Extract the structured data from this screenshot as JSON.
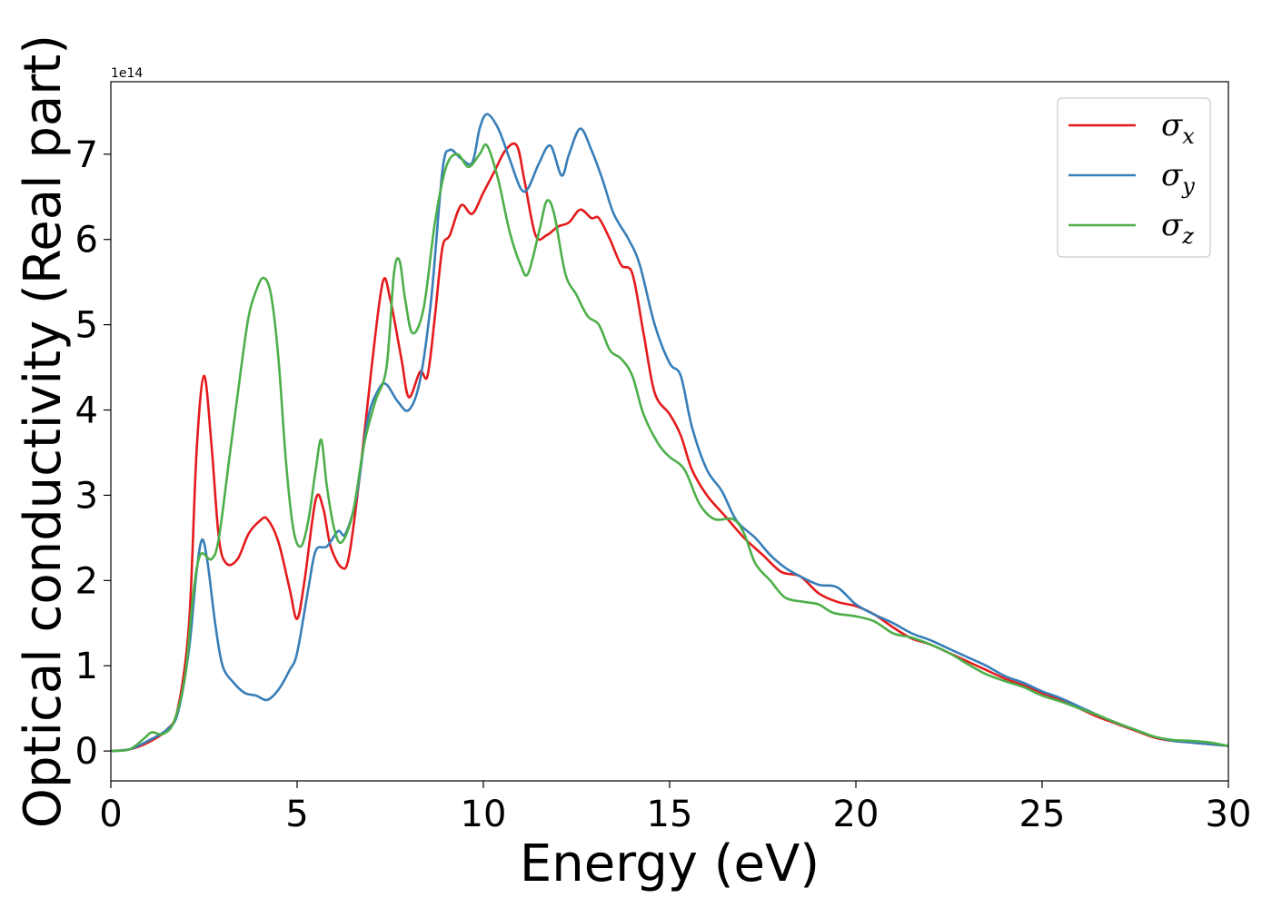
{
  "chart_data": {
    "type": "line",
    "xlabel": "Energy (eV)",
    "ylabel": "Optical conductivity (Real part)",
    "offset_text": "1e14",
    "xlim": [
      0,
      30
    ],
    "ylim": [
      -0.35,
      7.85
    ],
    "xticks": [
      "0",
      "5",
      "10",
      "15",
      "20",
      "25",
      "30"
    ],
    "yticks": [
      "0",
      "1",
      "2",
      "3",
      "4",
      "5",
      "6",
      "7"
    ],
    "grid": false,
    "legend_position": "top-right",
    "series": [
      {
        "name": "σ",
        "subscript": "x",
        "color": "#e41a1c",
        "points": [
          [
            0,
            0
          ],
          [
            0.5,
            0.02
          ],
          [
            1,
            0.1
          ],
          [
            1.5,
            0.25
          ],
          [
            1.8,
            0.5
          ],
          [
            2.1,
            1.5
          ],
          [
            2.3,
            3.5
          ],
          [
            2.5,
            4.4
          ],
          [
            2.7,
            3.6
          ],
          [
            2.9,
            2.5
          ],
          [
            3.1,
            2.2
          ],
          [
            3.4,
            2.25
          ],
          [
            3.7,
            2.55
          ],
          [
            4.0,
            2.7
          ],
          [
            4.2,
            2.72
          ],
          [
            4.5,
            2.45
          ],
          [
            4.8,
            1.9
          ],
          [
            5.0,
            1.55
          ],
          [
            5.2,
            2.0
          ],
          [
            5.5,
            2.95
          ],
          [
            5.7,
            2.85
          ],
          [
            5.9,
            2.4
          ],
          [
            6.2,
            2.15
          ],
          [
            6.4,
            2.3
          ],
          [
            6.7,
            3.3
          ],
          [
            7.0,
            4.5
          ],
          [
            7.3,
            5.5
          ],
          [
            7.5,
            5.3
          ],
          [
            7.8,
            4.6
          ],
          [
            8.0,
            4.15
          ],
          [
            8.3,
            4.45
          ],
          [
            8.5,
            4.4
          ],
          [
            8.7,
            5.1
          ],
          [
            8.9,
            5.9
          ],
          [
            9.1,
            6.05
          ],
          [
            9.4,
            6.4
          ],
          [
            9.7,
            6.3
          ],
          [
            10.0,
            6.55
          ],
          [
            10.3,
            6.8
          ],
          [
            10.6,
            7.05
          ],
          [
            10.9,
            7.1
          ],
          [
            11.1,
            6.7
          ],
          [
            11.4,
            6.05
          ],
          [
            11.7,
            6.05
          ],
          [
            12.0,
            6.15
          ],
          [
            12.3,
            6.2
          ],
          [
            12.6,
            6.35
          ],
          [
            12.9,
            6.25
          ],
          [
            13.1,
            6.25
          ],
          [
            13.4,
            6.0
          ],
          [
            13.7,
            5.7
          ],
          [
            14.0,
            5.6
          ],
          [
            14.3,
            4.9
          ],
          [
            14.6,
            4.2
          ],
          [
            15.0,
            3.95
          ],
          [
            15.3,
            3.7
          ],
          [
            15.6,
            3.3
          ],
          [
            16.0,
            3.0
          ],
          [
            16.5,
            2.75
          ],
          [
            17.0,
            2.5
          ],
          [
            17.5,
            2.3
          ],
          [
            18.0,
            2.1
          ],
          [
            18.5,
            2.05
          ],
          [
            19.0,
            1.85
          ],
          [
            19.5,
            1.75
          ],
          [
            20.0,
            1.7
          ],
          [
            20.5,
            1.6
          ],
          [
            21.0,
            1.45
          ],
          [
            21.5,
            1.32
          ],
          [
            22.0,
            1.25
          ],
          [
            22.5,
            1.15
          ],
          [
            23.0,
            1.05
          ],
          [
            23.5,
            0.95
          ],
          [
            24.0,
            0.85
          ],
          [
            24.5,
            0.77
          ],
          [
            25.0,
            0.68
          ],
          [
            25.5,
            0.6
          ],
          [
            26.0,
            0.5
          ],
          [
            26.5,
            0.4
          ],
          [
            27.0,
            0.32
          ],
          [
            27.5,
            0.24
          ],
          [
            28.0,
            0.16
          ],
          [
            28.5,
            0.12
          ],
          [
            29.0,
            0.1
          ],
          [
            29.5,
            0.08
          ],
          [
            30.0,
            0.06
          ]
        ]
      },
      {
        "name": "σ",
        "subscript": "y",
        "color": "#377eb8",
        "points": [
          [
            0,
            0
          ],
          [
            0.5,
            0.02
          ],
          [
            1,
            0.12
          ],
          [
            1.5,
            0.25
          ],
          [
            1.8,
            0.45
          ],
          [
            2.1,
            1.2
          ],
          [
            2.3,
            2.1
          ],
          [
            2.45,
            2.48
          ],
          [
            2.6,
            2.2
          ],
          [
            2.8,
            1.5
          ],
          [
            3.0,
            1.0
          ],
          [
            3.3,
            0.8
          ],
          [
            3.6,
            0.68
          ],
          [
            3.9,
            0.65
          ],
          [
            4.2,
            0.6
          ],
          [
            4.5,
            0.72
          ],
          [
            4.8,
            0.95
          ],
          [
            5.0,
            1.15
          ],
          [
            5.3,
            1.9
          ],
          [
            5.5,
            2.35
          ],
          [
            5.8,
            2.4
          ],
          [
            6.1,
            2.58
          ],
          [
            6.3,
            2.55
          ],
          [
            6.6,
            3.0
          ],
          [
            6.9,
            3.9
          ],
          [
            7.2,
            4.25
          ],
          [
            7.4,
            4.3
          ],
          [
            7.7,
            4.1
          ],
          [
            8.0,
            4.0
          ],
          [
            8.3,
            4.35
          ],
          [
            8.6,
            5.3
          ],
          [
            8.9,
            6.8
          ],
          [
            9.1,
            7.05
          ],
          [
            9.4,
            6.95
          ],
          [
            9.7,
            6.9
          ],
          [
            9.9,
            7.3
          ],
          [
            10.1,
            7.47
          ],
          [
            10.4,
            7.3
          ],
          [
            10.7,
            6.95
          ],
          [
            11.0,
            6.6
          ],
          [
            11.2,
            6.6
          ],
          [
            11.5,
            6.9
          ],
          [
            11.8,
            7.1
          ],
          [
            12.1,
            6.75
          ],
          [
            12.3,
            7.0
          ],
          [
            12.6,
            7.3
          ],
          [
            12.9,
            7.05
          ],
          [
            13.2,
            6.7
          ],
          [
            13.5,
            6.3
          ],
          [
            13.9,
            6.0
          ],
          [
            14.2,
            5.7
          ],
          [
            14.6,
            5.0
          ],
          [
            15.0,
            4.55
          ],
          [
            15.3,
            4.4
          ],
          [
            15.6,
            3.8
          ],
          [
            16.0,
            3.3
          ],
          [
            16.4,
            3.05
          ],
          [
            16.8,
            2.7
          ],
          [
            17.3,
            2.5
          ],
          [
            17.7,
            2.3
          ],
          [
            18.1,
            2.15
          ],
          [
            18.5,
            2.05
          ],
          [
            19.0,
            1.95
          ],
          [
            19.5,
            1.92
          ],
          [
            20.0,
            1.72
          ],
          [
            20.5,
            1.6
          ],
          [
            21.0,
            1.5
          ],
          [
            21.5,
            1.38
          ],
          [
            22.0,
            1.3
          ],
          [
            22.5,
            1.2
          ],
          [
            23.0,
            1.1
          ],
          [
            23.5,
            1.0
          ],
          [
            24.0,
            0.88
          ],
          [
            24.5,
            0.8
          ],
          [
            25.0,
            0.7
          ],
          [
            25.5,
            0.62
          ],
          [
            26.0,
            0.52
          ],
          [
            26.5,
            0.42
          ],
          [
            27.0,
            0.33
          ],
          [
            27.5,
            0.25
          ],
          [
            28.0,
            0.17
          ],
          [
            28.5,
            0.12
          ],
          [
            29.0,
            0.1
          ],
          [
            29.5,
            0.08
          ],
          [
            30.0,
            0.06
          ]
        ]
      },
      {
        "name": "σ",
        "subscript": "z",
        "color": "#4daf4a",
        "points": [
          [
            0,
            0
          ],
          [
            0.5,
            0.02
          ],
          [
            0.9,
            0.15
          ],
          [
            1.1,
            0.22
          ],
          [
            1.4,
            0.2
          ],
          [
            1.7,
            0.35
          ],
          [
            2.0,
            0.9
          ],
          [
            2.2,
            1.8
          ],
          [
            2.4,
            2.3
          ],
          [
            2.7,
            2.25
          ],
          [
            2.9,
            2.5
          ],
          [
            3.2,
            3.5
          ],
          [
            3.5,
            4.5
          ],
          [
            3.7,
            5.1
          ],
          [
            3.9,
            5.4
          ],
          [
            4.1,
            5.55
          ],
          [
            4.3,
            5.35
          ],
          [
            4.5,
            4.6
          ],
          [
            4.7,
            3.4
          ],
          [
            4.9,
            2.6
          ],
          [
            5.1,
            2.4
          ],
          [
            5.3,
            2.7
          ],
          [
            5.5,
            3.3
          ],
          [
            5.65,
            3.65
          ],
          [
            5.8,
            3.1
          ],
          [
            6.0,
            2.6
          ],
          [
            6.2,
            2.45
          ],
          [
            6.5,
            2.8
          ],
          [
            6.8,
            3.6
          ],
          [
            7.1,
            4.1
          ],
          [
            7.4,
            4.5
          ],
          [
            7.6,
            5.6
          ],
          [
            7.75,
            5.75
          ],
          [
            7.9,
            5.3
          ],
          [
            8.1,
            4.9
          ],
          [
            8.4,
            5.2
          ],
          [
            8.7,
            6.2
          ],
          [
            9.0,
            6.85
          ],
          [
            9.3,
            7.0
          ],
          [
            9.6,
            6.85
          ],
          [
            9.9,
            7.0
          ],
          [
            10.1,
            7.1
          ],
          [
            10.4,
            6.7
          ],
          [
            10.7,
            6.1
          ],
          [
            11.0,
            5.7
          ],
          [
            11.2,
            5.6
          ],
          [
            11.5,
            6.1
          ],
          [
            11.7,
            6.45
          ],
          [
            11.9,
            6.3
          ],
          [
            12.2,
            5.6
          ],
          [
            12.5,
            5.35
          ],
          [
            12.8,
            5.1
          ],
          [
            13.1,
            5.0
          ],
          [
            13.4,
            4.7
          ],
          [
            13.7,
            4.6
          ],
          [
            14.0,
            4.4
          ],
          [
            14.3,
            3.95
          ],
          [
            14.7,
            3.6
          ],
          [
            15.0,
            3.45
          ],
          [
            15.4,
            3.3
          ],
          [
            15.8,
            2.9
          ],
          [
            16.2,
            2.72
          ],
          [
            16.7,
            2.72
          ],
          [
            17.0,
            2.55
          ],
          [
            17.3,
            2.2
          ],
          [
            17.7,
            2.0
          ],
          [
            18.1,
            1.8
          ],
          [
            18.6,
            1.75
          ],
          [
            19.0,
            1.72
          ],
          [
            19.4,
            1.62
          ],
          [
            20.0,
            1.58
          ],
          [
            20.5,
            1.52
          ],
          [
            21.0,
            1.38
          ],
          [
            21.5,
            1.33
          ],
          [
            22.0,
            1.25
          ],
          [
            22.5,
            1.15
          ],
          [
            23.0,
            1.02
          ],
          [
            23.5,
            0.9
          ],
          [
            24.0,
            0.82
          ],
          [
            24.5,
            0.75
          ],
          [
            25.0,
            0.65
          ],
          [
            25.5,
            0.58
          ],
          [
            26.0,
            0.5
          ],
          [
            26.5,
            0.42
          ],
          [
            27.0,
            0.33
          ],
          [
            27.5,
            0.25
          ],
          [
            28.0,
            0.17
          ],
          [
            28.5,
            0.13
          ],
          [
            29.0,
            0.12
          ],
          [
            29.5,
            0.1
          ],
          [
            30.0,
            0.06
          ]
        ]
      }
    ]
  }
}
